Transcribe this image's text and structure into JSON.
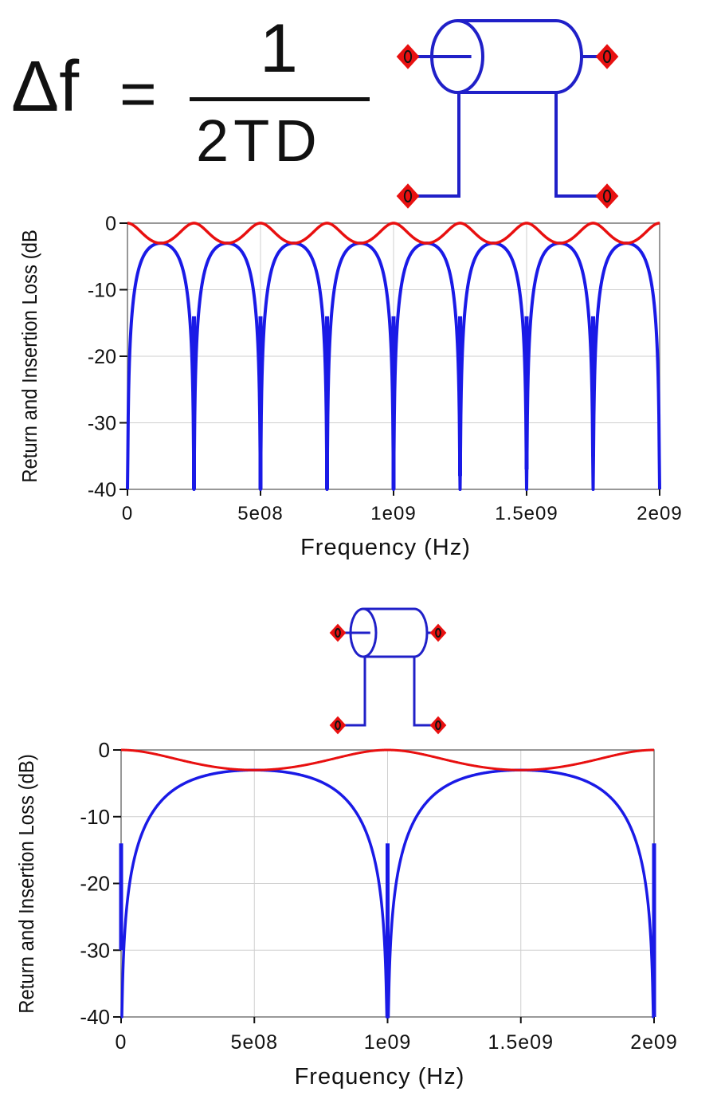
{
  "formula": {
    "lhs": "Δf",
    "eq": "=",
    "numerator": "1",
    "denominator": "2TD"
  },
  "colors": {
    "return_loss": "#1a1ae6",
    "insertion_loss": "#e81010",
    "port": "#e81010",
    "schematic": "#2020c8",
    "grid": "#cfcfcf"
  },
  "chart_data": [
    {
      "type": "line",
      "title": "",
      "xlabel": "Frequency (Hz)",
      "ylabel": "Return and Insertion Loss (dB",
      "xlim": [
        0,
        2000000000
      ],
      "ylim": [
        -40,
        0
      ],
      "x_ticks": [
        "0",
        "5e08",
        "1e09",
        "1.5e09",
        "2e09"
      ],
      "y_ticks": [
        "0",
        "-10",
        "-20",
        "-30",
        "-40"
      ],
      "grid": true,
      "fundamental_frequency_hz": 250000000,
      "series": [
        {
          "color": "insertion_loss",
          "description": "ripples between 0 and -3 dB, period 250 MHz",
          "x": [
            0,
            125000000,
            250000000,
            375000000,
            500000000,
            625000000,
            750000000,
            875000000,
            1000000000,
            1125000000,
            1250000000,
            1375000000,
            1500000000,
            1625000000,
            1750000000,
            1875000000,
            2000000000
          ],
          "y": [
            0,
            -3,
            0,
            -3,
            0,
            -3,
            0,
            -3,
            0,
            -3,
            0,
            -3,
            0,
            -3,
            0,
            -3,
            0
          ]
        },
        {
          "color": "return_loss",
          "description": "dips at multiples of 250 MHz",
          "dip_frequencies": [
            250000000,
            500000000,
            750000000,
            1000000000,
            1250000000,
            1500000000,
            1750000000
          ],
          "dip_values": [
            -40,
            -40,
            -40,
            -40,
            -38,
            -37,
            -35
          ],
          "peak_value": -3
        }
      ]
    },
    {
      "type": "line",
      "title": "",
      "xlabel": "Frequency (Hz)",
      "ylabel": "Return and Insertion Loss (dB)",
      "xlim": [
        0,
        2000000000
      ],
      "ylim": [
        -40,
        0
      ],
      "x_ticks": [
        "0",
        "5e08",
        "1e09",
        "1.5e09",
        "2e09"
      ],
      "y_ticks": [
        "0",
        "-10",
        "-20",
        "-30",
        "-40"
      ],
      "grid": true,
      "fundamental_frequency_hz": 1000000000,
      "series": [
        {
          "color": "insertion_loss",
          "description": "ripples between 0 and -3 dB, period 1 GHz",
          "x": [
            0,
            500000000,
            1000000000,
            1500000000,
            2000000000
          ],
          "y": [
            0,
            -3,
            0,
            -3,
            0
          ]
        },
        {
          "color": "return_loss",
          "description": "dips at 0, 1 GHz and 2 GHz",
          "dip_frequencies": [
            0,
            1000000000,
            2000000000
          ],
          "dip_values": [
            -30,
            -40,
            -40
          ],
          "peak_value": -3
        }
      ]
    }
  ]
}
